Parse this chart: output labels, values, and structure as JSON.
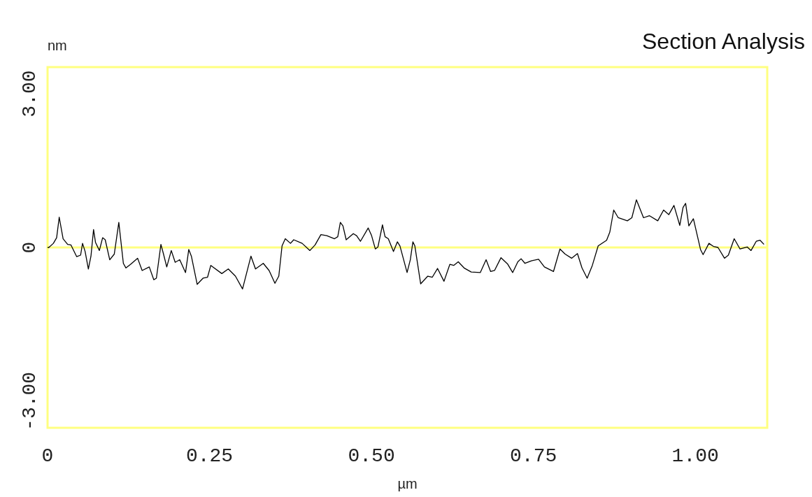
{
  "chart_data": {
    "type": "line",
    "title": "Section Analysis",
    "xlabel": "µm",
    "ylabel": "nm",
    "xlim": [
      0,
      1.111
    ],
    "ylim": [
      -3.52,
      3.52
    ],
    "xticks": [
      0,
      {
        "value": 0.25,
        "label": "0.25"
      },
      {
        "value": 0.5,
        "label": "0.50"
      },
      {
        "value": 0.75,
        "label": "0.75"
      },
      {
        "value": 1,
        "label": "1.00"
      }
    ],
    "yticks": [
      {
        "value": -3,
        "label": "-3.00"
      },
      0,
      {
        "value": 3,
        "label": "3.00"
      }
    ],
    "marker": "none",
    "line_style": "solid",
    "ref_lines": [
      {
        "axis": "y",
        "value": 0,
        "color": "#ffff80"
      }
    ],
    "series": [
      {
        "color": "#000000",
        "x": [
          0,
          0.002,
          0.009,
          0.014,
          0.018,
          0.024,
          0.031,
          0.036,
          0.045,
          0.051,
          0.054,
          0.058,
          0.063,
          0.067,
          0.071,
          0.074,
          0.08,
          0.085,
          0.089,
          0.096,
          0.103,
          0.11,
          0.117,
          0.121,
          0.128,
          0.139,
          0.146,
          0.157,
          0.164,
          0.168,
          0.175,
          0.179,
          0.184,
          0.191,
          0.197,
          0.204,
          0.213,
          0.218,
          0.222,
          0.231,
          0.24,
          0.247,
          0.252,
          0.269,
          0.279,
          0.29,
          0.301,
          0.314,
          0.321,
          0.333,
          0.342,
          0.351,
          0.357,
          0.362,
          0.367,
          0.375,
          0.38,
          0.393,
          0.405,
          0.413,
          0.422,
          0.431,
          0.443,
          0.448,
          0.452,
          0.456,
          0.461,
          0.472,
          0.477,
          0.483,
          0.495,
          0.5,
          0.506,
          0.51,
          0.517,
          0.521,
          0.526,
          0.534,
          0.54,
          0.544,
          0.555,
          0.56,
          0.564,
          0.567,
          0.576,
          0.587,
          0.594,
          0.602,
          0.612,
          0.621,
          0.627,
          0.634,
          0.643,
          0.654,
          0.668,
          0.677,
          0.684,
          0.69,
          0.7,
          0.71,
          0.718,
          0.726,
          0.731,
          0.737,
          0.747,
          0.758,
          0.767,
          0.781,
          0.791,
          0.799,
          0.809,
          0.818,
          0.825,
          0.833,
          0.841,
          0.85,
          0.863,
          0.868,
          0.874,
          0.881,
          0.895,
          0.902,
          0.909,
          0.92,
          0.929,
          0.942,
          0.951,
          0.959,
          0.967,
          0.976,
          0.981,
          0.985,
          0.99,
          0.997,
          1.008,
          1.012,
          1.021,
          1.028,
          1.035,
          1.045,
          1.051,
          1.06,
          1.069,
          1.08,
          1.086,
          1.094,
          1.1,
          1.106
        ],
        "values": [
          0,
          0,
          0.08,
          0.19,
          0.59,
          0.17,
          0.06,
          0.05,
          -0.18,
          -0.15,
          0.08,
          -0.08,
          -0.42,
          -0.17,
          0.35,
          0.1,
          -0.06,
          0.19,
          0.15,
          -0.24,
          -0.13,
          0.49,
          -0.31,
          -0.4,
          -0.33,
          -0.21,
          -0.45,
          -0.38,
          -0.63,
          -0.6,
          0.06,
          -0.13,
          -0.38,
          -0.06,
          -0.29,
          -0.24,
          -0.49,
          -0.04,
          -0.17,
          -0.72,
          -0.6,
          -0.58,
          -0.35,
          -0.51,
          -0.42,
          -0.56,
          -0.81,
          -0.17,
          -0.42,
          -0.31,
          -0.45,
          -0.7,
          -0.56,
          0.03,
          0.17,
          0.08,
          0.15,
          0.08,
          -0.06,
          0.05,
          0.25,
          0.23,
          0.17,
          0.21,
          0.49,
          0.42,
          0.15,
          0.27,
          0.23,
          0.12,
          0.38,
          0.24,
          -0.03,
          0.01,
          0.44,
          0.21,
          0.17,
          -0.08,
          0.11,
          0.03,
          -0.49,
          -0.24,
          0.11,
          0.03,
          -0.71,
          -0.56,
          -0.58,
          -0.41,
          -0.66,
          -0.33,
          -0.35,
          -0.28,
          -0.4,
          -0.48,
          -0.49,
          -0.24,
          -0.47,
          -0.45,
          -0.2,
          -0.32,
          -0.49,
          -0.28,
          -0.22,
          -0.31,
          -0.26,
          -0.23,
          -0.38,
          -0.47,
          -0.03,
          -0.13,
          -0.21,
          -0.12,
          -0.4,
          -0.6,
          -0.35,
          0.03,
          0.14,
          0.3,
          0.73,
          0.58,
          0.52,
          0.58,
          0.93,
          0.58,
          0.62,
          0.52,
          0.73,
          0.64,
          0.82,
          0.43,
          0.78,
          0.86,
          0.42,
          0.56,
          -0.04,
          -0.14,
          0.08,
          0.02,
          0,
          -0.21,
          -0.15,
          0.17,
          -0.03,
          0.01,
          -0.06,
          0.12,
          0.14,
          0.06
        ]
      }
    ]
  }
}
